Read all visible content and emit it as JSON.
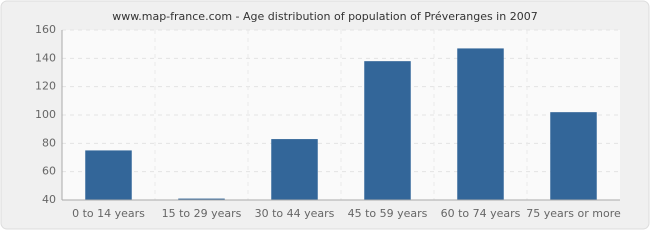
{
  "chart_data": {
    "type": "bar",
    "title": "www.map-france.com - Age distribution of population of Préveranges in 2007",
    "categories": [
      "0 to 14 years",
      "15 to 29 years",
      "30 to 44 years",
      "45 to 59 years",
      "60 to 74 years",
      "75 years or more"
    ],
    "values": [
      75,
      41,
      83,
      138,
      147,
      102
    ],
    "color": "#336699",
    "ylim": [
      40,
      160
    ],
    "yticks": [
      40,
      60,
      80,
      100,
      120,
      140,
      160
    ],
    "grid": true
  }
}
